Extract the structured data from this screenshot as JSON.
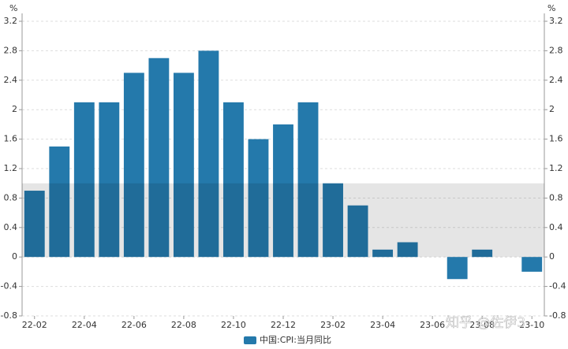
{
  "chart_data": {
    "type": "bar",
    "y_label": "%",
    "y2_label": "%",
    "categories": [
      "22-02",
      null,
      "22-04",
      null,
      "22-06",
      null,
      "22-08",
      null,
      "22-10",
      null,
      "22-12",
      null,
      "23-02",
      null,
      "23-04",
      null,
      "23-06",
      null,
      "23-08",
      null,
      "23-10"
    ],
    "series": [
      {
        "name": "中国:CPI:当月同比",
        "color": "#2479ab",
        "values": [
          0.9,
          1.5,
          2.1,
          2.1,
          2.5,
          2.7,
          2.5,
          2.8,
          2.1,
          1.6,
          1.8,
          2.1,
          1.0,
          0.7,
          0.1,
          0.2,
          0.0,
          -0.3,
          0.1,
          0.0,
          -0.2
        ]
      }
    ],
    "ylim": [
      -0.8,
      3.2
    ],
    "yticks": [
      -0.8,
      -0.4,
      0,
      0.4,
      0.8,
      1.2,
      1.6,
      2,
      2.4,
      2.8,
      3.2
    ],
    "y2lim": [
      -0.8,
      3.2
    ],
    "y2ticks": [
      -0.8,
      -0.4,
      0,
      0.4,
      0.8,
      1.2,
      1.6,
      2,
      2.4,
      2.8,
      3.2
    ],
    "shaded_range": [
      0,
      1
    ],
    "grid": true,
    "watermark": "知乎 @佐伊3"
  }
}
